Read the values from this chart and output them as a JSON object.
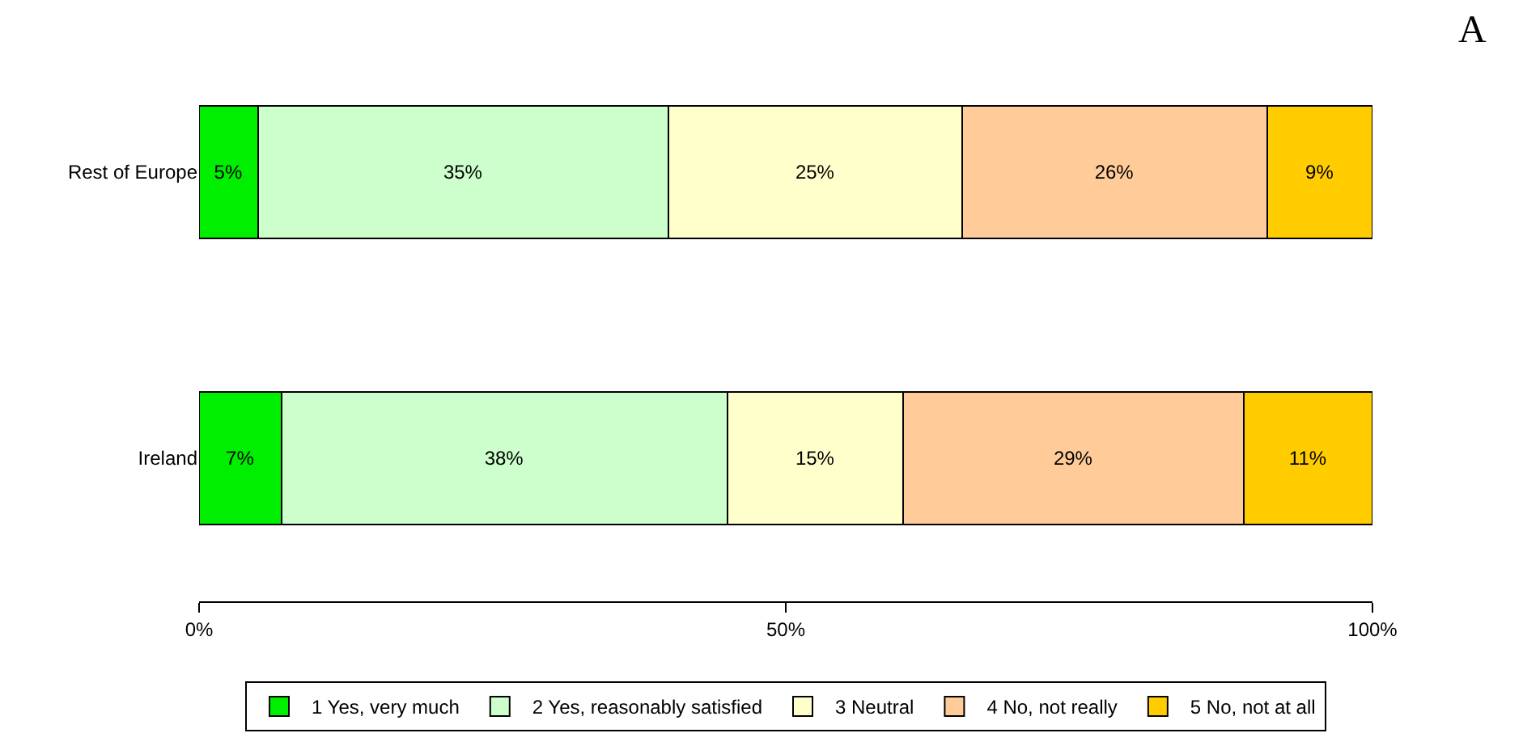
{
  "chart_data": {
    "type": "bar",
    "orientation": "horizontal",
    "stacked": true,
    "categories": [
      "Rest of Europe",
      "Ireland"
    ],
    "series": [
      {
        "name": "1 Yes, very much",
        "color": "#00ee00",
        "values": [
          5,
          7
        ],
        "value_labels": [
          "5%",
          "7%"
        ]
      },
      {
        "name": "2 Yes, reasonably satisfied",
        "color": "#ccffcc",
        "values": [
          35,
          38
        ],
        "value_labels": [
          "35%",
          "38%"
        ]
      },
      {
        "name": "3 Neutral",
        "color": "#ffffcc",
        "values": [
          25,
          15
        ],
        "value_labels": [
          "25%",
          "15%"
        ]
      },
      {
        "name": "4 No, not really",
        "color": "#ffcc99",
        "values": [
          26,
          29
        ],
        "value_labels": [
          "26%",
          "29%"
        ]
      },
      {
        "name": "5 No, not at all",
        "color": "#ffcc00",
        "values": [
          9,
          11
        ],
        "value_labels": [
          "9%",
          "11%"
        ]
      }
    ],
    "xlim": [
      0,
      100
    ],
    "xticks": [
      {
        "value": 0,
        "label": "0%"
      },
      {
        "value": 50,
        "label": "50%"
      },
      {
        "value": 100,
        "label": "100%"
      }
    ],
    "grid": false,
    "legend": "bottom",
    "annotations": [
      "A"
    ]
  }
}
